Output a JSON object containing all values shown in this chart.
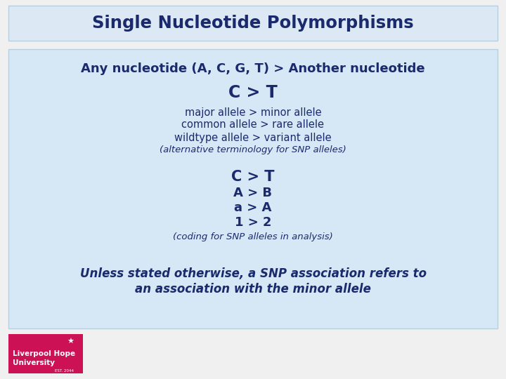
{
  "title": "Single Nucleotide Polymorphisms",
  "title_bg": "#dce9f5",
  "title_border": "#b8cfe0",
  "main_bg": "#d6e8f5",
  "outer_bg": "#f0f0f0",
  "text_color": "#1a2a6c",
  "line1": "Any nucleotide (A, C, G, T) > Another nucleotide",
  "line2": "C > T",
  "line3": "major allele > minor allele",
  "line4": "common allele > rare allele",
  "line5": "wildtype allele > variant allele",
  "line6": "(alternative terminology for SNP alleles)",
  "line7": "C > T",
  "line8": "A > B",
  "line9": "a > A",
  "line10": "1 > 2",
  "line11": "(coding for SNP alleles in analysis)",
  "line12": "Unless stated otherwise, a SNP association refers to",
  "line13": "an association with the minor allele",
  "logo_bg": "#cc1155",
  "logo_text_line1": "Liverpool Hope",
  "logo_text_line2": "University",
  "logo_est": "EST. 2044",
  "logo_star": "★"
}
